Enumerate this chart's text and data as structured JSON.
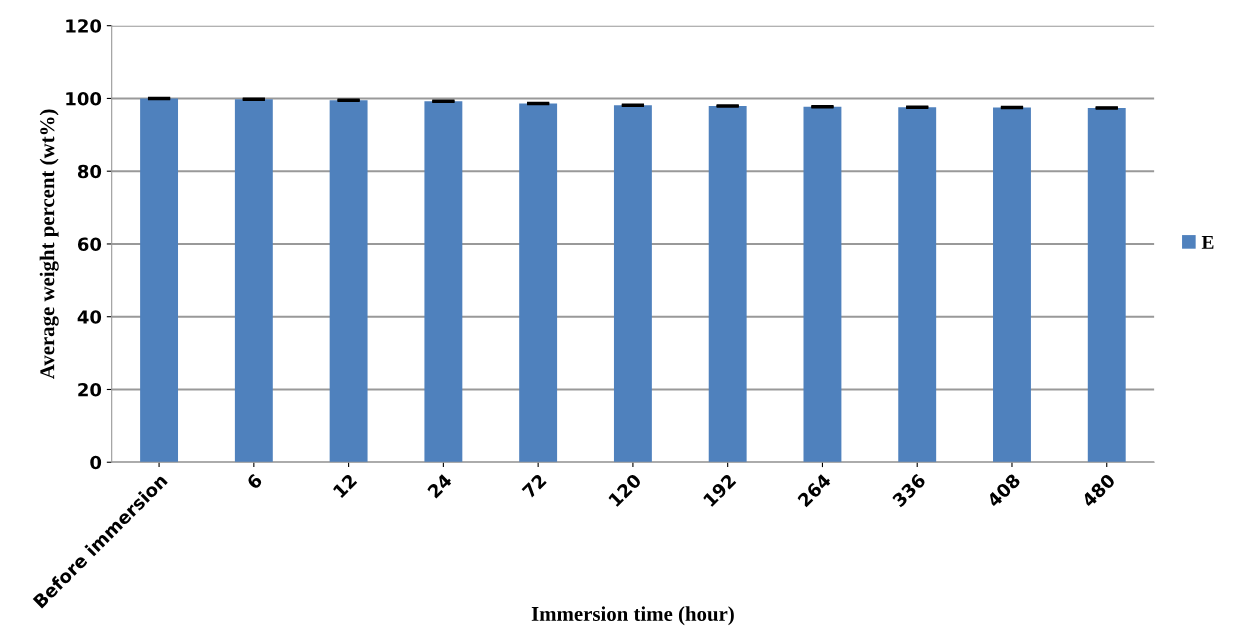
{
  "chart_data": {
    "type": "bar",
    "xlabel": "Immersion time (hour)",
    "ylabel": "Average weight percent (wt%)",
    "categories": [
      "Before immersion",
      "6",
      "12",
      "24",
      "72",
      "120",
      "192",
      "264",
      "336",
      "408",
      "480"
    ],
    "series": [
      {
        "name": "E",
        "color": "#4f81bd",
        "values": [
          100,
          99.8,
          99.5,
          99.2,
          98.6,
          98.1,
          97.9,
          97.7,
          97.6,
          97.5,
          97.4
        ],
        "errors": [
          0.1,
          0.1,
          0.1,
          0.1,
          0.1,
          0.1,
          0.1,
          0.1,
          0.1,
          0.1,
          0.1
        ]
      }
    ],
    "ylim": [
      0,
      120
    ],
    "yticks": [
      0,
      20,
      40,
      60,
      80,
      100,
      120
    ],
    "grid": "y",
    "legend": "right"
  }
}
